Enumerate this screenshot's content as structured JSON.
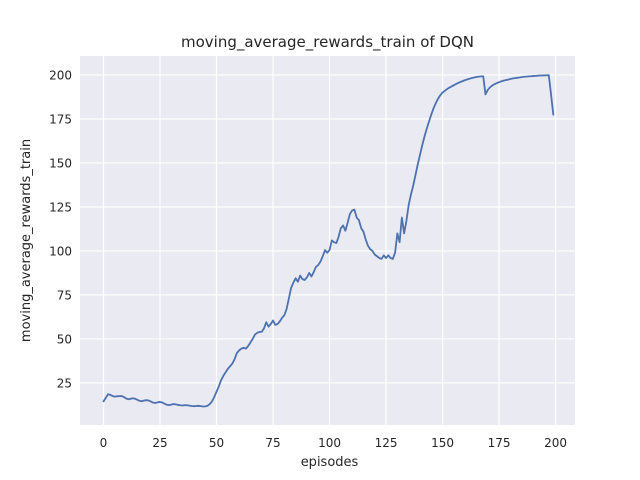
{
  "chart_data": {
    "type": "line",
    "title": "moving_average_rewards_train of DQN",
    "xlabel": "episodes",
    "ylabel": "moving_average_rewards_train",
    "x_ticks": [
      0,
      25,
      50,
      75,
      100,
      125,
      150,
      175,
      200
    ],
    "y_ticks": [
      25,
      50,
      75,
      100,
      125,
      150,
      175,
      200
    ],
    "xlim": [
      -10.4,
      208.6
    ],
    "ylim": [
      1.1,
      210.8
    ],
    "grid": true,
    "legend": false,
    "style": "seaborn-darkgrid",
    "colors": {
      "line": "#4C72B0",
      "plot_background": "#EAEAF2",
      "grid": "#FFFFFF",
      "text": "#262626",
      "figure_background": "#FFFFFF"
    },
    "series": [
      {
        "name": "moving_average_rewards_train",
        "x_start": 0,
        "x_step": 1,
        "values": [
          14.5,
          16.5,
          18.6,
          18.2,
          17.6,
          17.2,
          17.4,
          17.5,
          17.6,
          17.0,
          16.2,
          15.7,
          16.0,
          16.3,
          16.0,
          15.4,
          14.8,
          14.6,
          15.0,
          15.2,
          15.0,
          14.4,
          13.8,
          13.6,
          14.0,
          14.2,
          13.9,
          13.2,
          12.6,
          12.4,
          12.7,
          13.0,
          12.8,
          12.5,
          12.3,
          12.2,
          12.4,
          12.3,
          12.1,
          11.9,
          11.8,
          11.9,
          12.0,
          11.8,
          11.6,
          11.7,
          12.0,
          13.0,
          14.5,
          17.0,
          20.0,
          23.0,
          26.5,
          29.0,
          31.0,
          33.0,
          34.5,
          36.0,
          38.5,
          42.0,
          43.5,
          44.5,
          45.0,
          44.5,
          46.0,
          48.0,
          50.0,
          52.5,
          53.5,
          54.0,
          54.0,
          56.0,
          59.5,
          57.0,
          58.5,
          60.5,
          58.0,
          58.5,
          60.0,
          62.0,
          63.5,
          67.0,
          73.0,
          79.0,
          82.0,
          84.5,
          82.5,
          86.0,
          84.0,
          83.5,
          85.0,
          87.5,
          85.5,
          88.0,
          91.0,
          92.0,
          94.0,
          97.0,
          100.5,
          99.0,
          100.5,
          106.0,
          105.0,
          104.5,
          108.0,
          113.0,
          114.5,
          111.5,
          116.0,
          121.0,
          123.0,
          123.5,
          119.0,
          117.5,
          113.0,
          111.0,
          106.5,
          103.0,
          101.0,
          100.0,
          98.0,
          97.0,
          96.0,
          95.5,
          97.5,
          96.0,
          97.5,
          96.0,
          95.5,
          99.0,
          110.0,
          105.0,
          119.0,
          110.0,
          117.0,
          126.0,
          132.0,
          137.0,
          143.0,
          149.0,
          154.5,
          160.0,
          165.0,
          169.5,
          173.5,
          177.5,
          181.0,
          184.0,
          186.5,
          188.5,
          190.0,
          191.0,
          192.0,
          192.8,
          193.5,
          194.2,
          194.9,
          195.5,
          196.1,
          196.6,
          197.1,
          197.5,
          197.9,
          198.3,
          198.6,
          198.9,
          199.1,
          199.2,
          199.3,
          189.0,
          191.5,
          193.0,
          194.0,
          194.8,
          195.4,
          195.9,
          196.4,
          196.8,
          197.1,
          197.4,
          197.7,
          198.0,
          198.2,
          198.4,
          198.6,
          198.8,
          199.0,
          199.1,
          199.2,
          199.3,
          199.4,
          199.5,
          199.6,
          199.7,
          199.7,
          199.8,
          199.8,
          199.9,
          189.0,
          177.5
        ]
      }
    ]
  }
}
